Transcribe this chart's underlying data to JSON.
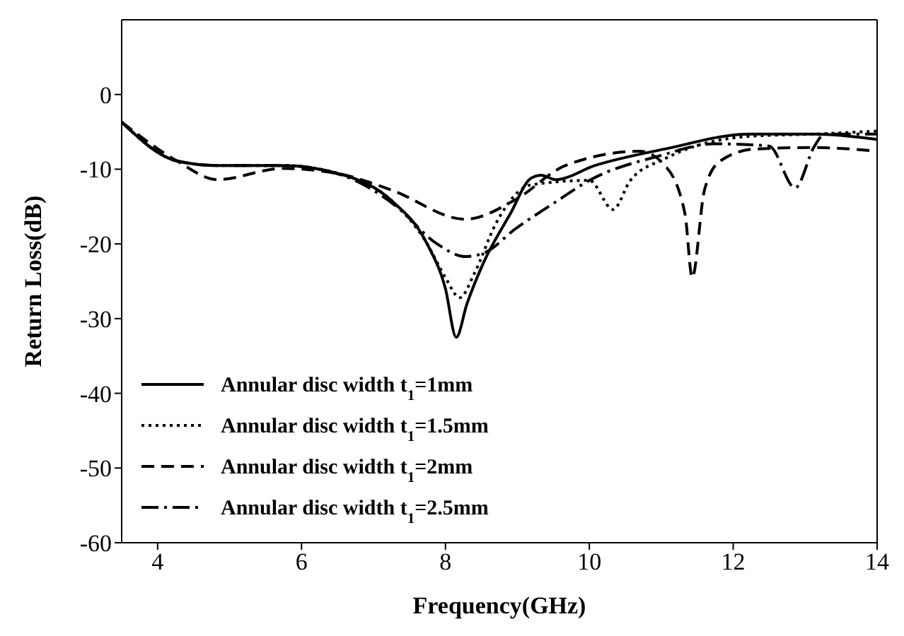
{
  "chart_data": {
    "type": "line",
    "xlabel": "Frequency(GHz)",
    "ylabel": "Return Loss(dB)",
    "xlim": [
      3.5,
      14
    ],
    "xticks": [
      4,
      6,
      8,
      10,
      12,
      14
    ],
    "ylim": [
      -60,
      10
    ],
    "yticks": [
      -60,
      -50,
      -40,
      -30,
      -20,
      -10,
      0
    ],
    "grid": false,
    "legend": "bottom left",
    "marker": "none",
    "series": [
      {
        "name": "Annular disc width t$_{1}$=1mm",
        "color": "#000000",
        "line_style": "solid",
        "x": [
          3.5,
          4.27,
          4.83,
          5.73,
          6.56,
          7.25,
          7.74,
          8.0,
          8.15,
          8.3,
          8.53,
          8.9,
          9.19,
          9.33,
          9.53,
          10.08,
          11.05,
          12.23,
          13.13,
          14
        ],
        "values": [
          -3.7,
          -8.9,
          -9.5,
          -9.5,
          -10.7,
          -14.2,
          -19.9,
          -26,
          -32.5,
          -28,
          -22.5,
          -16,
          -11.2,
          -10.8,
          -11.4,
          -9.5,
          -7.3,
          -5.3,
          -5.3,
          -6
        ]
      },
      {
        "name": "Annular disc width t$_{1}$=1.5mm",
        "color": "#000000",
        "line_style": "dotted",
        "x": [
          3.5,
          4.27,
          4.83,
          5.73,
          6.56,
          7.25,
          7.74,
          8.0,
          8.2,
          8.4,
          8.7,
          9.19,
          10.0,
          10.33,
          10.57,
          11.05,
          12.23,
          13.13,
          14
        ],
        "values": [
          -3.7,
          -8.9,
          -9.5,
          -9.5,
          -10.7,
          -14.2,
          -19.9,
          -24.5,
          -27.2,
          -24,
          -17.3,
          -12.1,
          -11.5,
          -15.4,
          -11.5,
          -8.6,
          -5.6,
          -5.3,
          -4.9
        ]
      },
      {
        "name": "Annular disc width t$_{1}$=2mm",
        "color": "#000000",
        "line_style": "dashed",
        "x": [
          3.5,
          4.27,
          4.83,
          5.73,
          6.56,
          7.25,
          8.28,
          8.97,
          9.67,
          10.7,
          11.05,
          11.33,
          11.43,
          11.6,
          11.82,
          12.3,
          13.13,
          14
        ],
        "values": [
          -3.7,
          -8.9,
          -11.4,
          -9.9,
          -10.7,
          -12.8,
          -16.7,
          -14.1,
          -9.5,
          -7.6,
          -9.5,
          -16,
          -24.5,
          -12.8,
          -8.9,
          -7.3,
          -7.1,
          -7.6
        ]
      },
      {
        "name": "Annular disc width t$_{1}$=2.5mm",
        "color": "#000000",
        "line_style": "dashdot",
        "x": [
          3.5,
          4.27,
          4.83,
          5.73,
          6.56,
          7.32,
          7.87,
          8.28,
          8.56,
          8.97,
          9.53,
          10.0,
          10.98,
          11.74,
          12.5,
          12.86,
          13.13,
          13.27,
          14
        ],
        "values": [
          -3.7,
          -8.9,
          -9.5,
          -9.5,
          -10.8,
          -15,
          -19.9,
          -21.7,
          -21.1,
          -18,
          -14.4,
          -11.5,
          -8.2,
          -6.6,
          -6.9,
          -12.5,
          -6.9,
          -5.3,
          -5.3
        ]
      }
    ]
  }
}
